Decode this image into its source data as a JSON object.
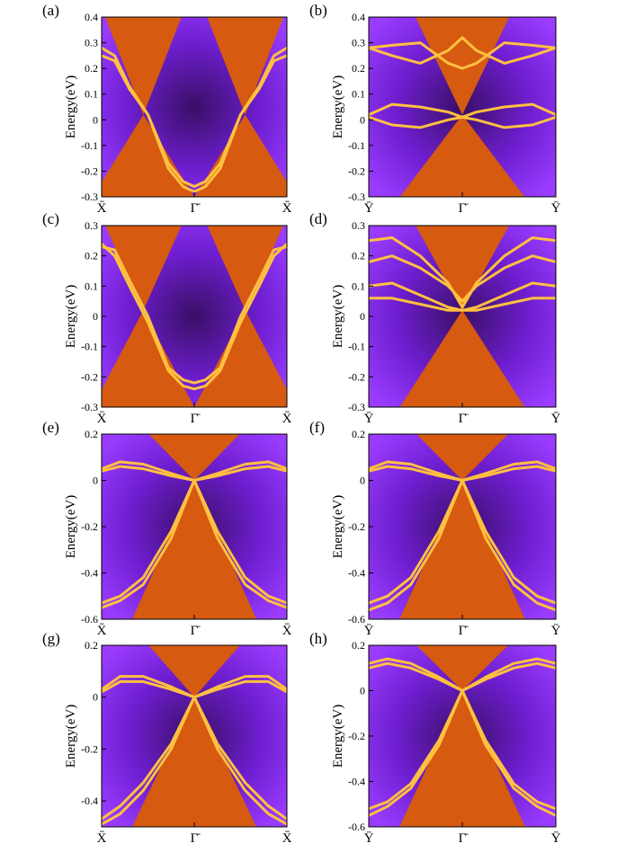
{
  "figure": {
    "ylabel": "Energy(eV)"
  },
  "colors": {
    "bulk": "#d65a10",
    "edge": "#ffc040",
    "gap_dark": "#3a0f66",
    "gap_mid": "#6e1ed0",
    "gap_light": "#9a3cff"
  },
  "chart_data": [
    {
      "panel": "(a)",
      "type": "heatmap",
      "xticks": [
        "X̄",
        "Γ̄",
        "X̄"
      ],
      "ylim": [
        -0.3,
        0.4
      ],
      "yticks": [
        {
          "v": 0.4,
          "t": "0.4"
        },
        {
          "v": 0.3,
          "t": "0.3"
        },
        {
          "v": 0.2,
          "t": "0.2"
        },
        {
          "v": 0.1,
          "t": "0.1"
        },
        {
          "v": 0,
          "t": "0"
        },
        {
          "v": -0.1,
          "t": "-0.1"
        },
        {
          "v": -0.2,
          "t": "-0.2"
        },
        {
          "v": -0.3,
          "t": "-0.3"
        }
      ],
      "dirac_points": [
        {
          "k": -0.55,
          "E": 0.02
        },
        {
          "k": 0.55,
          "E": 0.02
        }
      ],
      "edge_states": [
        [
          [
            0.0,
            0.28
          ],
          [
            0.14,
            0.25
          ],
          [
            0.3,
            0.13
          ],
          [
            0.5,
            0.02
          ],
          [
            0.72,
            -0.17
          ],
          [
            0.88,
            -0.24
          ],
          [
            1.0,
            -0.26
          ]
        ],
        [
          [
            0.0,
            0.25
          ],
          [
            0.14,
            0.23
          ],
          [
            0.3,
            0.12
          ],
          [
            0.5,
            0.02
          ],
          [
            0.72,
            -0.19
          ],
          [
            0.88,
            -0.26
          ],
          [
            1.0,
            -0.28
          ]
        ]
      ]
    },
    {
      "panel": "(b)",
      "type": "heatmap",
      "xticks": [
        "Ȳ",
        "Γ̄",
        "Ȳ"
      ],
      "ylim": [
        -0.3,
        0.4
      ],
      "yticks": [
        {
          "v": 0.4,
          "t": "0.4"
        },
        {
          "v": 0.3,
          "t": "0.3"
        },
        {
          "v": 0.2,
          "t": "0.2"
        },
        {
          "v": 0.1,
          "t": "0.1"
        },
        {
          "v": 0,
          "t": "0"
        },
        {
          "v": -0.1,
          "t": "-0.1"
        },
        {
          "v": -0.2,
          "t": "-0.2"
        },
        {
          "v": -0.3,
          "t": "-0.3"
        }
      ],
      "dirac_points": [
        {
          "k": 0.0,
          "E": 0.02
        }
      ],
      "edge_states": [
        [
          [
            0.0,
            0.02
          ],
          [
            0.25,
            0.06
          ],
          [
            0.55,
            0.05
          ],
          [
            0.85,
            0.03
          ],
          [
            1.0,
            0.01
          ]
        ],
        [
          [
            0.0,
            0.01
          ],
          [
            0.25,
            -0.02
          ],
          [
            0.55,
            -0.03
          ],
          [
            0.85,
            0.0
          ],
          [
            1.0,
            0.01
          ]
        ],
        [
          [
            0.0,
            0.28
          ],
          [
            0.25,
            0.25
          ],
          [
            0.55,
            0.22
          ],
          [
            0.85,
            0.27
          ],
          [
            1.0,
            0.32
          ]
        ],
        [
          [
            0.0,
            0.28
          ],
          [
            0.25,
            0.29
          ],
          [
            0.55,
            0.3
          ],
          [
            0.85,
            0.22
          ],
          [
            1.0,
            0.2
          ]
        ]
      ]
    },
    {
      "panel": "(c)",
      "type": "heatmap",
      "xticks": [
        "X̄",
        "Γ̄",
        "X̄"
      ],
      "ylim": [
        -0.3,
        0.3
      ],
      "yticks": [
        {
          "v": 0.3,
          "t": "0.3"
        },
        {
          "v": 0.2,
          "t": "0.2"
        },
        {
          "v": 0.1,
          "t": "0.1"
        },
        {
          "v": 0,
          "t": "0"
        },
        {
          "v": -0.1,
          "t": "-0.1"
        },
        {
          "v": -0.2,
          "t": "-0.2"
        },
        {
          "v": -0.3,
          "t": "-0.3"
        }
      ],
      "dirac_points": [
        {
          "k": -0.55,
          "E": 0.02
        },
        {
          "k": 0.55,
          "E": 0.02
        }
      ],
      "edge_states": [
        [
          [
            0.0,
            0.23
          ],
          [
            0.14,
            0.22
          ],
          [
            0.3,
            0.12
          ],
          [
            0.5,
            0.0
          ],
          [
            0.72,
            -0.17
          ],
          [
            0.88,
            -0.21
          ],
          [
            1.0,
            -0.22
          ]
        ],
        [
          [
            0.0,
            0.24
          ],
          [
            0.14,
            0.2
          ],
          [
            0.3,
            0.1
          ],
          [
            0.5,
            -0.02
          ],
          [
            0.72,
            -0.18
          ],
          [
            0.88,
            -0.23
          ],
          [
            1.0,
            -0.24
          ]
        ]
      ]
    },
    {
      "panel": "(d)",
      "type": "heatmap",
      "xticks": [
        "Ȳ",
        "Γ̄",
        "Ȳ"
      ],
      "ylim": [
        -0.3,
        0.3
      ],
      "yticks": [
        {
          "v": 0.3,
          "t": "0.3"
        },
        {
          "v": 0.2,
          "t": "0.2"
        },
        {
          "v": 0.1,
          "t": "0.1"
        },
        {
          "v": 0,
          "t": "0"
        },
        {
          "v": -0.1,
          "t": "-0.1"
        },
        {
          "v": -0.2,
          "t": "-0.2"
        },
        {
          "v": -0.3,
          "t": "-0.3"
        }
      ],
      "dirac_points": [
        {
          "k": 0.0,
          "E": 0.02
        }
      ],
      "edge_states": [
        [
          [
            0.0,
            0.1
          ],
          [
            0.25,
            0.11
          ],
          [
            0.55,
            0.07
          ],
          [
            0.85,
            0.03
          ],
          [
            1.0,
            0.02
          ]
        ],
        [
          [
            0.0,
            0.06
          ],
          [
            0.25,
            0.06
          ],
          [
            0.55,
            0.04
          ],
          [
            0.85,
            0.02
          ],
          [
            1.0,
            0.02
          ]
        ],
        [
          [
            0.0,
            0.18
          ],
          [
            0.25,
            0.2
          ],
          [
            0.55,
            0.16
          ],
          [
            0.85,
            0.1
          ],
          [
            1.0,
            0.05
          ]
        ],
        [
          [
            0.0,
            0.25
          ],
          [
            0.25,
            0.26
          ],
          [
            0.55,
            0.2
          ],
          [
            0.85,
            0.11
          ],
          [
            1.0,
            0.03
          ]
        ]
      ]
    },
    {
      "panel": "(e)",
      "type": "heatmap",
      "xticks": [
        "X̄",
        "Γ̄",
        "X̄"
      ],
      "ylim": [
        -0.6,
        0.2
      ],
      "yticks": [
        {
          "v": 0.2,
          "t": "0.2"
        },
        {
          "v": 0,
          "t": "0"
        },
        {
          "v": -0.2,
          "t": "-0.2"
        },
        {
          "v": -0.4,
          "t": "-0.4"
        },
        {
          "v": -0.6,
          "t": "-0.6"
        }
      ],
      "dirac_points": [
        {
          "k": 0.0,
          "E": 0.0
        }
      ],
      "edge_states": [
        [
          [
            0.0,
            0.05
          ],
          [
            0.2,
            0.08
          ],
          [
            0.45,
            0.07
          ],
          [
            0.75,
            0.03
          ],
          [
            1.0,
            0.0
          ]
        ],
        [
          [
            0.0,
            0.04
          ],
          [
            0.2,
            0.06
          ],
          [
            0.45,
            0.05
          ],
          [
            0.75,
            0.02
          ],
          [
            1.0,
            0.0
          ]
        ],
        [
          [
            0.0,
            -0.53
          ],
          [
            0.2,
            -0.5
          ],
          [
            0.45,
            -0.42
          ],
          [
            0.75,
            -0.22
          ],
          [
            1.0,
            0.0
          ]
        ],
        [
          [
            0.0,
            -0.55
          ],
          [
            0.2,
            -0.52
          ],
          [
            0.45,
            -0.45
          ],
          [
            0.75,
            -0.25
          ],
          [
            1.0,
            0.0
          ]
        ]
      ]
    },
    {
      "panel": "(f)",
      "type": "heatmap",
      "xticks": [
        "Ȳ",
        "Γ̄",
        "Ȳ"
      ],
      "ylim": [
        -0.6,
        0.2
      ],
      "yticks": [
        {
          "v": 0.2,
          "t": "0.2"
        },
        {
          "v": 0,
          "t": "0"
        },
        {
          "v": -0.2,
          "t": "-0.2"
        },
        {
          "v": -0.4,
          "t": "-0.4"
        },
        {
          "v": -0.6,
          "t": "-0.6"
        }
      ],
      "dirac_points": [
        {
          "k": 0.0,
          "E": 0.0
        }
      ],
      "edge_states": [
        [
          [
            0.0,
            0.05
          ],
          [
            0.2,
            0.08
          ],
          [
            0.45,
            0.07
          ],
          [
            0.75,
            0.03
          ],
          [
            1.0,
            0.0
          ]
        ],
        [
          [
            0.0,
            0.04
          ],
          [
            0.2,
            0.06
          ],
          [
            0.45,
            0.05
          ],
          [
            0.75,
            0.02
          ],
          [
            1.0,
            0.0
          ]
        ],
        [
          [
            0.0,
            -0.53
          ],
          [
            0.2,
            -0.5
          ],
          [
            0.45,
            -0.42
          ],
          [
            0.75,
            -0.22
          ],
          [
            1.0,
            0.0
          ]
        ],
        [
          [
            0.0,
            -0.56
          ],
          [
            0.2,
            -0.53
          ],
          [
            0.45,
            -0.45
          ],
          [
            0.75,
            -0.25
          ],
          [
            1.0,
            0.0
          ]
        ]
      ]
    },
    {
      "panel": "(g)",
      "type": "heatmap",
      "xticks": [
        "X̄",
        "Γ̄",
        "X̄"
      ],
      "ylim": [
        -0.5,
        0.2
      ],
      "yticks": [
        {
          "v": 0.2,
          "t": "0.2"
        },
        {
          "v": 0,
          "t": "0"
        },
        {
          "v": -0.2,
          "t": "-0.2"
        },
        {
          "v": -0.4,
          "t": "-0.4"
        }
      ],
      "dirac_points": [
        {
          "k": 0.0,
          "E": 0.0
        }
      ],
      "edge_states": [
        [
          [
            0.0,
            0.03
          ],
          [
            0.2,
            0.08
          ],
          [
            0.45,
            0.08
          ],
          [
            0.75,
            0.04
          ],
          [
            1.0,
            0.0
          ]
        ],
        [
          [
            0.0,
            0.02
          ],
          [
            0.2,
            0.06
          ],
          [
            0.45,
            0.06
          ],
          [
            0.75,
            0.03
          ],
          [
            1.0,
            0.0
          ]
        ],
        [
          [
            0.0,
            -0.47
          ],
          [
            0.2,
            -0.42
          ],
          [
            0.45,
            -0.33
          ],
          [
            0.75,
            -0.18
          ],
          [
            1.0,
            0.0
          ]
        ],
        [
          [
            0.0,
            -0.49
          ],
          [
            0.2,
            -0.45
          ],
          [
            0.45,
            -0.36
          ],
          [
            0.75,
            -0.2
          ],
          [
            1.0,
            0.0
          ]
        ]
      ]
    },
    {
      "panel": "(h)",
      "type": "heatmap",
      "xticks": [
        "Ȳ",
        "Γ̄",
        "Ȳ"
      ],
      "ylim": [
        -0.6,
        0.2
      ],
      "yticks": [
        {
          "v": 0.2,
          "t": "0.2"
        },
        {
          "v": 0,
          "t": "0"
        },
        {
          "v": -0.2,
          "t": "-0.2"
        },
        {
          "v": -0.4,
          "t": "-0.4"
        },
        {
          "v": -0.6,
          "t": "-0.6"
        }
      ],
      "dirac_points": [
        {
          "k": 0.0,
          "E": 0.0
        }
      ],
      "edge_states": [
        [
          [
            0.0,
            0.12
          ],
          [
            0.2,
            0.14
          ],
          [
            0.45,
            0.12
          ],
          [
            0.75,
            0.06
          ],
          [
            1.0,
            0.0
          ]
        ],
        [
          [
            0.0,
            0.1
          ],
          [
            0.2,
            0.12
          ],
          [
            0.45,
            0.1
          ],
          [
            0.75,
            0.05
          ],
          [
            1.0,
            0.0
          ]
        ],
        [
          [
            0.0,
            -0.52
          ],
          [
            0.2,
            -0.49
          ],
          [
            0.45,
            -0.41
          ],
          [
            0.75,
            -0.22
          ],
          [
            1.0,
            0.0
          ]
        ],
        [
          [
            0.0,
            -0.55
          ],
          [
            0.2,
            -0.51
          ],
          [
            0.45,
            -0.43
          ],
          [
            0.75,
            -0.24
          ],
          [
            1.0,
            0.0
          ]
        ]
      ]
    }
  ]
}
